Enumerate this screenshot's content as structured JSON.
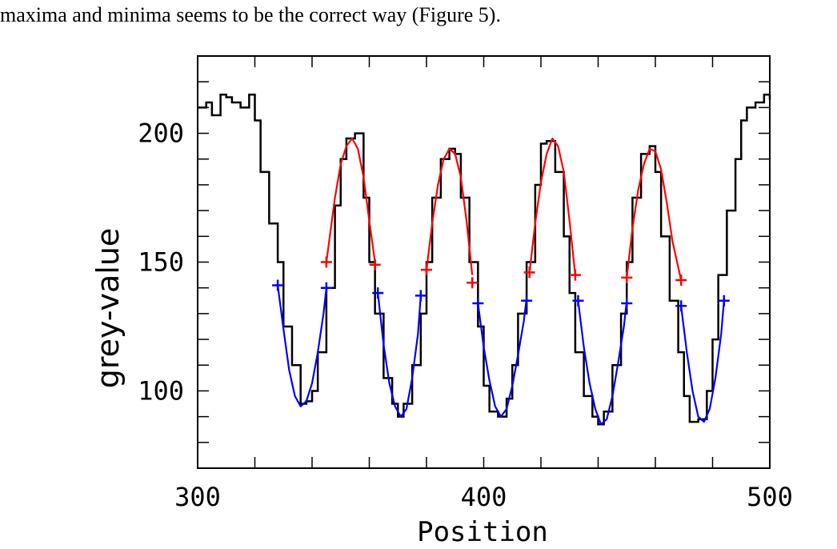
{
  "caption": "maxima and minima seems to be the correct way (Figure 5).",
  "chart_data": {
    "type": "line",
    "title": "",
    "xlabel": "Position",
    "ylabel": "grey-value",
    "xlim": [
      300,
      500
    ],
    "ylim": [
      70,
      230
    ],
    "x_ticks": [
      300,
      400,
      500
    ],
    "y_ticks": [
      100,
      150,
      200
    ],
    "colors": {
      "raw": "#000000",
      "max_fit": "#ff0000",
      "min_fit": "#0000ff"
    },
    "raw_profile": {
      "x": [
        300,
        303,
        305,
        308,
        310,
        312,
        315,
        318,
        320,
        322,
        325,
        328,
        330,
        333,
        336,
        338,
        340,
        342,
        345,
        348,
        350,
        352,
        355,
        358,
        360,
        362,
        365,
        368,
        370,
        372,
        375,
        378,
        380,
        382,
        385,
        388,
        390,
        392,
        395,
        398,
        400,
        402,
        405,
        408,
        410,
        412,
        415,
        418,
        420,
        422,
        425,
        428,
        430,
        432,
        435,
        438,
        440,
        442,
        445,
        448,
        450,
        452,
        455,
        458,
        460,
        462,
        465,
        468,
        470,
        472,
        475,
        478,
        480,
        482,
        485,
        488,
        490,
        492,
        495,
        498,
        500
      ],
      "y": [
        210,
        212,
        207,
        215,
        214,
        212,
        210,
        215,
        205,
        185,
        165,
        150,
        125,
        110,
        95,
        96,
        100,
        115,
        140,
        172,
        190,
        198,
        200,
        175,
        150,
        130,
        105,
        95,
        90,
        95,
        110,
        130,
        150,
        175,
        190,
        194,
        192,
        175,
        150,
        125,
        102,
        92,
        90,
        97,
        110,
        130,
        150,
        180,
        196,
        197,
        185,
        160,
        138,
        115,
        98,
        90,
        87,
        92,
        110,
        130,
        150,
        175,
        192,
        195,
        185,
        160,
        135,
        115,
        98,
        88,
        89,
        100,
        120,
        145,
        170,
        190,
        205,
        210,
        212,
        215,
        213
      ]
    },
    "max_fit": [
      {
        "x": [
          345,
          348,
          350,
          352,
          354,
          356,
          358,
          360,
          362
        ],
        "y": [
          150,
          175,
          188,
          195,
          198,
          194,
          183,
          166,
          150
        ]
      },
      {
        "x": [
          380,
          382,
          384,
          386,
          388,
          390,
          392,
          394,
          396
        ],
        "y": [
          147,
          165,
          180,
          190,
          194,
          192,
          183,
          166,
          145
        ]
      },
      {
        "x": [
          416,
          418,
          420,
          422,
          424,
          426,
          428,
          430,
          432
        ],
        "y": [
          146,
          165,
          181,
          192,
          198,
          195,
          185,
          166,
          145
        ]
      },
      {
        "x": [
          450,
          452,
          454,
          456,
          458,
          460,
          462,
          464,
          466,
          469
        ],
        "y": [
          144,
          163,
          178,
          188,
          194,
          193,
          186,
          173,
          158,
          143
        ]
      }
    ],
    "min_fit": [
      {
        "x": [
          328,
          330,
          332,
          334,
          336,
          338,
          340,
          342,
          344,
          345
        ],
        "y": [
          141,
          124,
          108,
          98,
          94,
          96,
          103,
          115,
          130,
          140
        ]
      },
      {
        "x": [
          363,
          365,
          367,
          369,
          371,
          373,
          375,
          377,
          378
        ],
        "y": [
          138,
          118,
          103,
          94,
          90,
          93,
          105,
          122,
          137
        ]
      },
      {
        "x": [
          398,
          400,
          402,
          404,
          406,
          408,
          410,
          412,
          414,
          415
        ],
        "y": [
          134,
          117,
          104,
          94,
          90,
          93,
          102,
          114,
          127,
          136
        ]
      },
      {
        "x": [
          433,
          435,
          437,
          439,
          441,
          443,
          445,
          447,
          449,
          450
        ],
        "y": [
          135,
          117,
          103,
          93,
          87,
          89,
          98,
          111,
          125,
          135
        ]
      },
      {
        "x": [
          469,
          471,
          473,
          475,
          477,
          479,
          481,
          483,
          484
        ],
        "y": [
          133,
          115,
          100,
          90,
          88,
          93,
          105,
          122,
          135
        ]
      }
    ],
    "max_fit_markers": [
      {
        "x": 345,
        "y": 150
      },
      {
        "x": 362,
        "y": 149
      },
      {
        "x": 380,
        "y": 147
      },
      {
        "x": 396,
        "y": 142
      },
      {
        "x": 416,
        "y": 146
      },
      {
        "x": 432,
        "y": 145
      },
      {
        "x": 450,
        "y": 144
      },
      {
        "x": 469,
        "y": 143
      }
    ],
    "min_fit_markers": [
      {
        "x": 328,
        "y": 141
      },
      {
        "x": 345,
        "y": 140
      },
      {
        "x": 363,
        "y": 138
      },
      {
        "x": 378,
        "y": 137
      },
      {
        "x": 398,
        "y": 134
      },
      {
        "x": 415,
        "y": 135
      },
      {
        "x": 433,
        "y": 135
      },
      {
        "x": 450,
        "y": 134
      },
      {
        "x": 469,
        "y": 133
      },
      {
        "x": 484,
        "y": 135
      }
    ]
  }
}
